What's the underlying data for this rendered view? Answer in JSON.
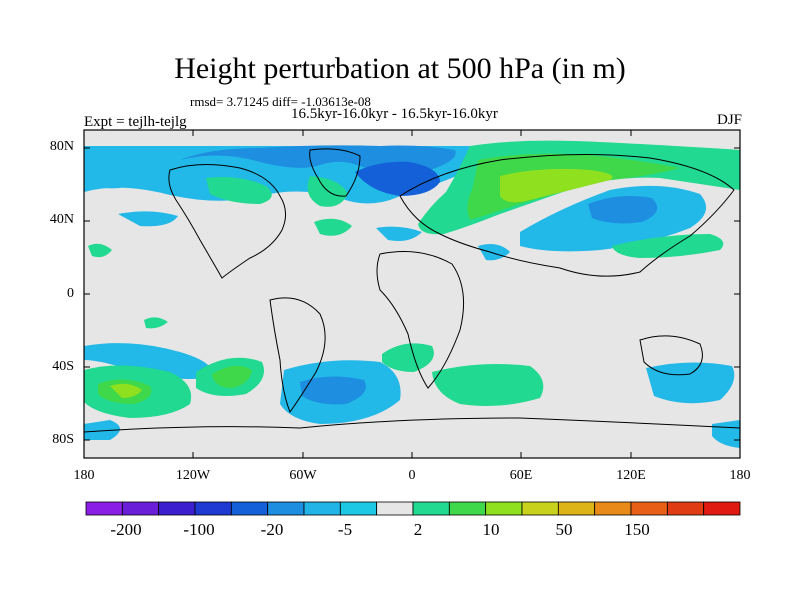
{
  "title": "Height perturbation at 500 hPa (in m)",
  "stats": "rmsd= 3.71245 diff= -1.03613e-08",
  "subtitle": "16.5kyr-16.0kyr - 16.5kyr-16.0kyr",
  "experiment": "Expt = tejlh-tejlg",
  "season": "DJF",
  "lat_labels": [
    "80N",
    "40N",
    "0",
    "40S",
    "80S"
  ],
  "lon_labels": [
    "180",
    "120W",
    "60W",
    "0",
    "60E",
    "120E",
    "180"
  ],
  "colorbar": {
    "colors": [
      "#8a1ee6",
      "#6a1ed8",
      "#3c20cf",
      "#1f3ad3",
      "#1360d8",
      "#1d8ee0",
      "#22b4e6",
      "#1cc8e4",
      "#e6e6e6",
      "#21d990",
      "#3fd84a",
      "#8fe01e",
      "#c8d21c",
      "#dcb418",
      "#e88a18",
      "#e86018",
      "#e03c14",
      "#e01a10"
    ],
    "labels": [
      "-200",
      "-100",
      "-20",
      "-5",
      "2",
      "10",
      "50",
      "150"
    ]
  },
  "map_colors": {
    "neutral": "#e6e6e6",
    "cyan": "#22b8e8",
    "blue": "#1d8ee0",
    "deep_blue": "#1360d8",
    "green": "#21d990",
    "lime": "#3fd84a",
    "yellow": "#8fe01e"
  }
}
